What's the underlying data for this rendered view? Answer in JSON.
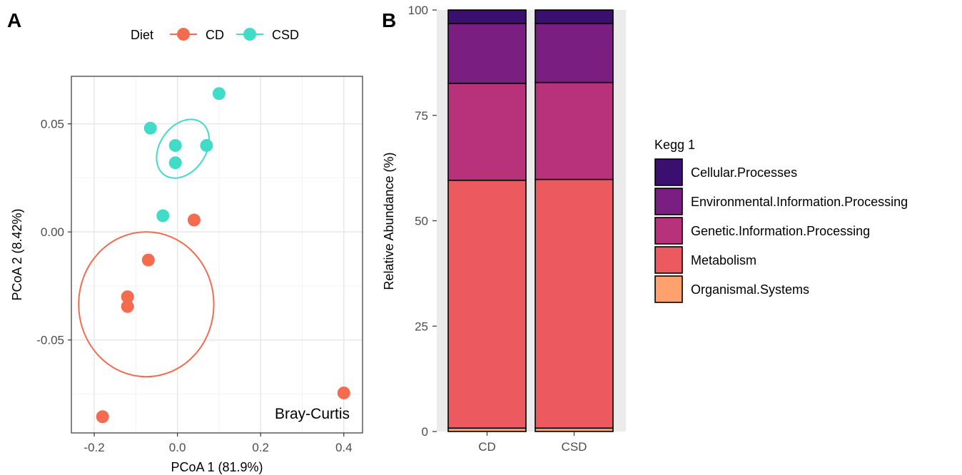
{
  "panel_a_label": "A",
  "panel_b_label": "B",
  "colors": {
    "CD": "#f46b4f",
    "CSD": "#40dcc8",
    "Cellular.Processes": "#3b0f70",
    "Environmental.Information.Processing": "#7a1e82",
    "Genetic.Information.Processing": "#b7327a",
    "Metabolism": "#ec5a5f",
    "Organismal.Systems": "#fea16e"
  },
  "chart_data": [
    {
      "type": "scatter",
      "xlabel": "PCoA 1 (81.9%)",
      "ylabel": "PCoA 2 (8.42%)",
      "xlim": [
        -0.255,
        0.445
      ],
      "ylim": [
        -0.093,
        0.072
      ],
      "xticks": [
        -0.2,
        0.0,
        0.2,
        0.4
      ],
      "xtick_labels": [
        "-0.2",
        "0.0",
        "0.2",
        "0.4"
      ],
      "yticks": [
        -0.05,
        0.0,
        0.05
      ],
      "ytick_labels": [
        "-0.05",
        "0.00",
        "0.05"
      ],
      "grid": true,
      "annotation": "Bray-Curtis",
      "legend": {
        "title": "Diet",
        "placement": "top",
        "entries": [
          "CD",
          "CSD"
        ]
      },
      "series": [
        {
          "name": "CD",
          "points": [
            {
              "x": 0.04,
              "y": 0.0055
            },
            {
              "x": -0.07,
              "y": -0.013
            },
            {
              "x": -0.12,
              "y": -0.03
            },
            {
              "x": -0.12,
              "y": -0.0345
            },
            {
              "x": 0.4,
              "y": -0.0745
            },
            {
              "x": -0.18,
              "y": -0.0855
            }
          ],
          "ellipse": {
            "cx": -0.075,
            "cy": -0.0335,
            "rx": 0.1625,
            "ry": 0.0335,
            "rotation_deg": 0
          }
        },
        {
          "name": "CSD",
          "points": [
            {
              "x": 0.1,
              "y": 0.064
            },
            {
              "x": -0.065,
              "y": 0.048
            },
            {
              "x": -0.005,
              "y": 0.04
            },
            {
              "x": 0.07,
              "y": 0.04
            },
            {
              "x": -0.005,
              "y": 0.032
            },
            {
              "x": -0.035,
              "y": 0.0075
            }
          ],
          "ellipse": {
            "cx": 0.013,
            "cy": 0.0385,
            "rx": 0.075,
            "ry": 0.015,
            "rotation_deg": -55
          }
        }
      ]
    },
    {
      "type": "bar",
      "stacked": true,
      "categories": [
        "CD",
        "CSD"
      ],
      "ylabel": "Relative Abundance (%)",
      "ylim": [
        0,
        100
      ],
      "yticks": [
        0,
        25,
        50,
        75,
        100
      ],
      "ytick_labels": [
        "0",
        "25",
        "50",
        "75",
        "100"
      ],
      "legend": {
        "title": "Kegg 1",
        "placement": "right"
      },
      "series": [
        {
          "name": "Organismal.Systems",
          "values": [
            0.8,
            0.8
          ]
        },
        {
          "name": "Metabolism",
          "values": [
            58.8,
            59.0
          ]
        },
        {
          "name": "Genetic.Information.Processing",
          "values": [
            23.0,
            23.0
          ]
        },
        {
          "name": "Environmental.Information.Processing",
          "values": [
            14.2,
            14.0
          ]
        },
        {
          "name": "Cellular.Processes",
          "values": [
            3.2,
            3.2
          ]
        }
      ]
    }
  ]
}
